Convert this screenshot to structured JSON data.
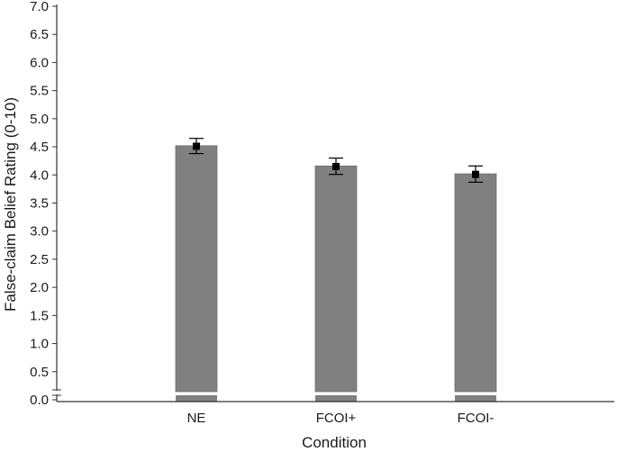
{
  "chart_data": {
    "type": "bar",
    "title": "",
    "xlabel": "Condition",
    "ylabel": "False-claim Belief Rating (0-10)",
    "categories": [
      "NE",
      "FCOI+",
      "FCOI-"
    ],
    "values": [
      4.52,
      4.16,
      4.02
    ],
    "means": [
      4.51,
      4.15,
      4.01
    ],
    "error_bars": [
      {
        "low": 4.38,
        "high": 4.65
      },
      {
        "low": 4.01,
        "high": 4.3
      },
      {
        "low": 3.87,
        "high": 4.16
      }
    ],
    "ylim": [
      0,
      7
    ],
    "yticks": [
      "0.0",
      "0.5",
      "1.0",
      "1.5",
      "2.0",
      "2.5",
      "3.0",
      "3.5",
      "4.0",
      "4.5",
      "5.0",
      "5.5",
      "6.0",
      "6.5",
      "7.0"
    ],
    "axis_break": true,
    "bar_color": "#808080",
    "marker_color": "#000000",
    "grid": false,
    "legend": "none"
  }
}
